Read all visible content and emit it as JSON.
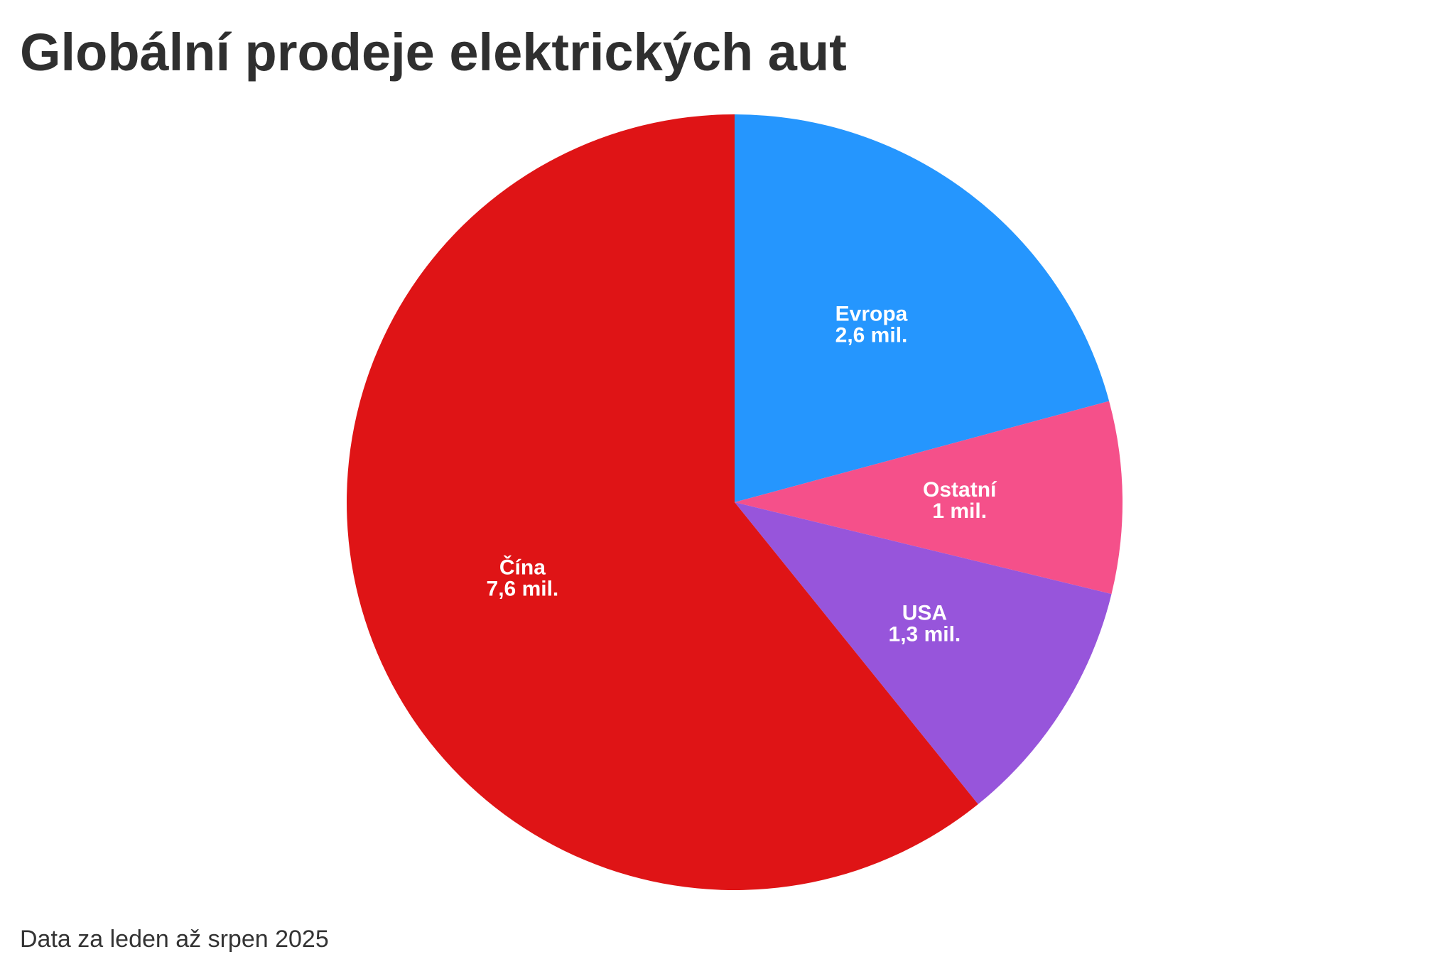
{
  "chart_data": {
    "type": "pie",
    "title": "Globální prodeje elektrických aut",
    "note": "Data za leden až srpen 2025",
    "slices": [
      {
        "name": "Evropa",
        "value": 2.6,
        "value_label": "2,6 mil.",
        "color": "#2596fe"
      },
      {
        "name": "Ostatní",
        "value": 1.0,
        "value_label": "1 mil.",
        "color": "#f5508a"
      },
      {
        "name": "USA",
        "value": 1.3,
        "value_label": "1,3 mil.",
        "color": "#9755db"
      },
      {
        "name": "Čína",
        "value": 7.6,
        "value_label": "7,6 mil.",
        "color": "#df1416"
      }
    ]
  }
}
